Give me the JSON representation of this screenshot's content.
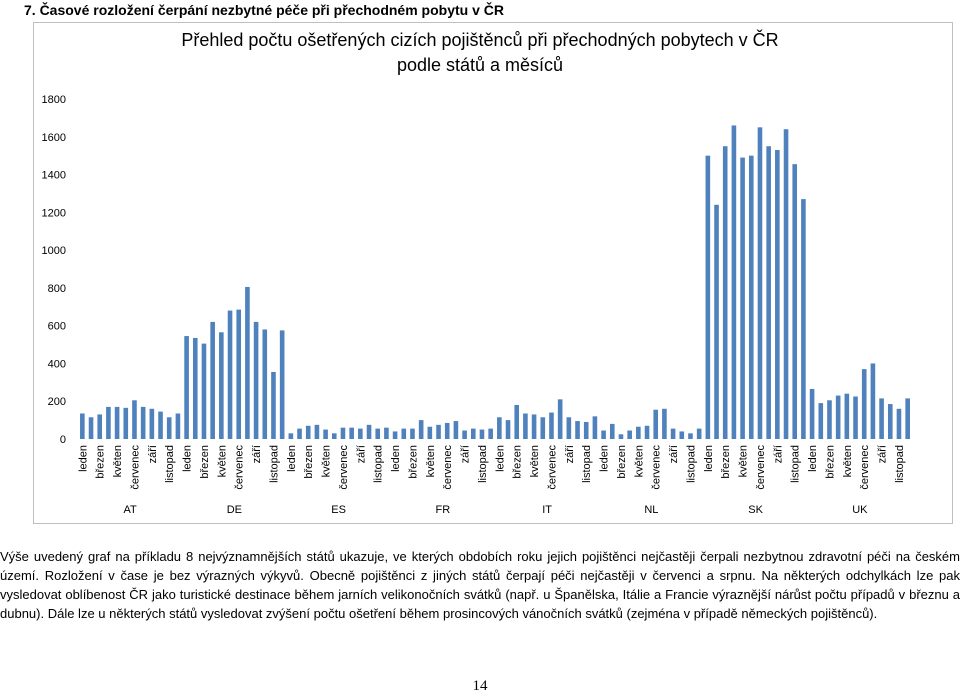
{
  "heading": "7.  Časové rozložení čerpání nezbytné péče při přechodném pobytu v ČR",
  "chart_data": {
    "type": "bar",
    "title_lines": [
      "Přehled počtu ošetřených cizích pojištěnců při přechodných pobytech v ČR",
      "podle států a měsíců"
    ],
    "categories": [
      "leden",
      null,
      "březen",
      null,
      "květen",
      null,
      "červenec",
      null,
      "září",
      null,
      "listopad",
      null,
      "leden",
      null,
      "březen",
      null,
      "květen",
      null,
      "červenec",
      null,
      "září",
      null,
      "listopad",
      null,
      "leden",
      null,
      "březen",
      null,
      "květen",
      null,
      "červenec",
      null,
      "září",
      null,
      "listopad",
      null,
      "leden",
      null,
      "březen",
      null,
      "květen",
      null,
      "červenec",
      null,
      "září",
      null,
      "listopad",
      null,
      "leden",
      null,
      "březen",
      null,
      "květen",
      null,
      "červenec",
      null,
      "září",
      null,
      "listopad",
      null,
      "leden",
      null,
      "březen",
      null,
      "květen",
      null,
      "červenec",
      null,
      "září",
      null,
      "listopad",
      null,
      "leden",
      null,
      "březen",
      null,
      "květen",
      null,
      "červenec",
      null,
      "září",
      null,
      "listopad",
      null,
      "leden",
      null,
      "březen",
      null,
      "květen",
      null,
      "červenec",
      null,
      "září",
      null,
      "listopad",
      null
    ],
    "groups": [
      "AT",
      "DE",
      "ES",
      "FR",
      "IT",
      "NL",
      "SK",
      "UK"
    ],
    "values": [
      135,
      115,
      130,
      170,
      170,
      165,
      205,
      170,
      160,
      145,
      115,
      135,
      545,
      535,
      505,
      620,
      565,
      680,
      685,
      805,
      620,
      580,
      355,
      575,
      30,
      55,
      70,
      75,
      50,
      30,
      60,
      60,
      55,
      75,
      55,
      60,
      40,
      55,
      55,
      100,
      65,
      75,
      85,
      95,
      45,
      55,
      50,
      55,
      115,
      100,
      180,
      135,
      130,
      115,
      140,
      210,
      115,
      95,
      90,
      120,
      45,
      80,
      25,
      45,
      65,
      70,
      155,
      160,
      55,
      40,
      30,
      55,
      1500,
      1240,
      1550,
      1660,
      1490,
      1500,
      1650,
      1550,
      1530,
      1640,
      1455,
      1270,
      265,
      190,
      205,
      230,
      240,
      225,
      370,
      400,
      215,
      185,
      160,
      215
    ],
    "color": "#4f81bd",
    "ylim": [
      0,
      1800
    ],
    "yticks": [
      0,
      200,
      400,
      600,
      800,
      1000,
      1200,
      1400,
      1600,
      1800
    ]
  },
  "paragraph": "Výše uvedený graf na příkladu 8 nejvýznamnějších států ukazuje, ve kterých obdobích roku jejich pojištěnci nejčastěji čerpali nezbytnou zdravotní péči na českém území. Rozložení v čase je bez výrazných výkyvů. Obecně pojištěnci z jiných států čerpají péči nejčastěji v červenci a srpnu. Na některých odchylkách lze pak vysledovat oblíbenost ČR jako turistické destinace během jarních velikonočních svátků (např. u Španělska, Itálie a Francie výraznější nárůst počtu případů v březnu a dubnu). Dále lze u některých států vysledovat zvýšení počtu ošetření během prosincových vánočních svátků (zejména v případě německých pojištěnců).",
  "page_number": "14"
}
